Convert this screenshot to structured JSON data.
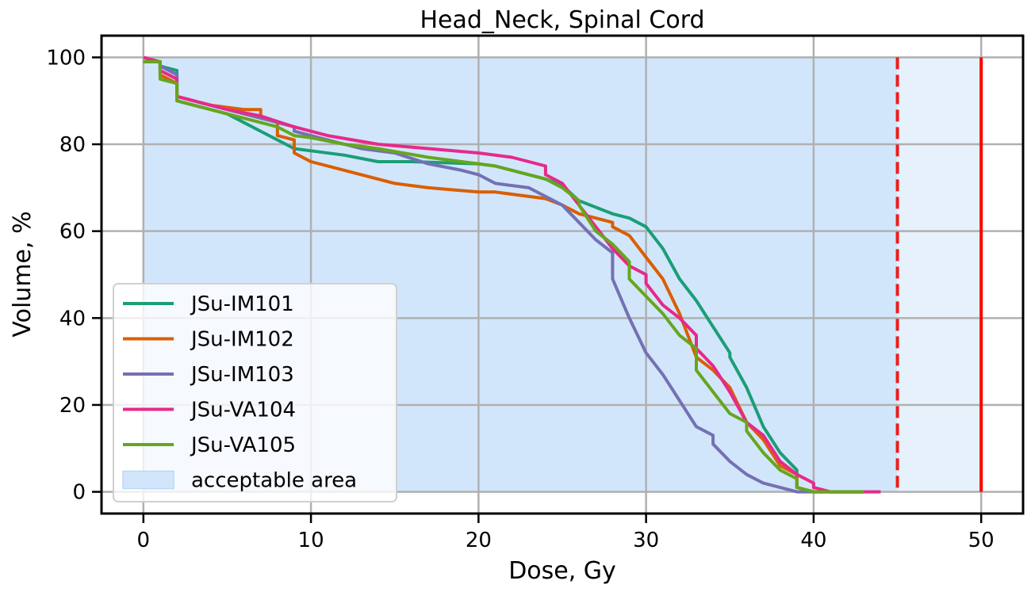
{
  "chart_data": {
    "type": "line",
    "title": "Head_Neck, Spinal Cord",
    "xlabel": "Dose, Gy",
    "ylabel": "Volume, %",
    "xlim": [
      -2.5,
      52.5
    ],
    "ylim": [
      -5,
      105
    ],
    "xticks": [
      0,
      10,
      20,
      30,
      40,
      50
    ],
    "yticks": [
      0,
      20,
      40,
      60,
      80,
      100
    ],
    "grid": true,
    "legend_position": "lower-left",
    "acceptable_area": {
      "label": "acceptable area",
      "x_from": 0,
      "x_to": 45,
      "y_from": 0,
      "y_to": 100,
      "color": "#d2e6fb"
    },
    "tolerance_band": {
      "x_from": 45,
      "x_to": 50,
      "color": "#e6f1fc"
    },
    "limit_lines": [
      {
        "x": 45,
        "style": "dashed",
        "color": "#ee1c1c"
      },
      {
        "x": 50,
        "style": "solid",
        "color": "#ff0000"
      }
    ],
    "series": [
      {
        "name": "JSu-IM101",
        "color": "#1b9e77",
        "points": [
          [
            0,
            99
          ],
          [
            1,
            99
          ],
          [
            1,
            98
          ],
          [
            2,
            97
          ],
          [
            2,
            90
          ],
          [
            5,
            87
          ],
          [
            7,
            83
          ],
          [
            9,
            79
          ],
          [
            10,
            78.5
          ],
          [
            12,
            77.5
          ],
          [
            14,
            76
          ],
          [
            16,
            76
          ],
          [
            20,
            75.5
          ],
          [
            21,
            75
          ],
          [
            23,
            73
          ],
          [
            24,
            72
          ],
          [
            25,
            70.5
          ],
          [
            26,
            67
          ],
          [
            28,
            64
          ],
          [
            29,
            63
          ],
          [
            30,
            61
          ],
          [
            31,
            56
          ],
          [
            32,
            49
          ],
          [
            33,
            44
          ],
          [
            34,
            38
          ],
          [
            35,
            32
          ],
          [
            35,
            31
          ],
          [
            36,
            24
          ],
          [
            37,
            15
          ],
          [
            38,
            9
          ],
          [
            39,
            5
          ],
          [
            39,
            1
          ],
          [
            40,
            0
          ],
          [
            43,
            0
          ]
        ]
      },
      {
        "name": "JSu-IM102",
        "color": "#d95f02",
        "points": [
          [
            0,
            99
          ],
          [
            1,
            99
          ],
          [
            1,
            96
          ],
          [
            2,
            94
          ],
          [
            2,
            91
          ],
          [
            3,
            90
          ],
          [
            4,
            89
          ],
          [
            5,
            88.5
          ],
          [
            6,
            88
          ],
          [
            7,
            88
          ],
          [
            7,
            86.5
          ],
          [
            8,
            85
          ],
          [
            8,
            82
          ],
          [
            9,
            81
          ],
          [
            9,
            78
          ],
          [
            10,
            76
          ],
          [
            12,
            74
          ],
          [
            15,
            71
          ],
          [
            17,
            70
          ],
          [
            20,
            69
          ],
          [
            21,
            69
          ],
          [
            24,
            67.5
          ],
          [
            25,
            66
          ],
          [
            26,
            64
          ],
          [
            27,
            63
          ],
          [
            28,
            62
          ],
          [
            28,
            61
          ],
          [
            29,
            59
          ],
          [
            30,
            54
          ],
          [
            31,
            49
          ],
          [
            32,
            41
          ],
          [
            33,
            31
          ],
          [
            34,
            28
          ],
          [
            35,
            24
          ],
          [
            36,
            16
          ],
          [
            37,
            12
          ],
          [
            38,
            6
          ],
          [
            39,
            4
          ],
          [
            39,
            1
          ],
          [
            40,
            0
          ],
          [
            43,
            0
          ]
        ]
      },
      {
        "name": "JSu-IM103",
        "color": "#7570b3",
        "points": [
          [
            0,
            99
          ],
          [
            1,
            99
          ],
          [
            1,
            98
          ],
          [
            2,
            96
          ],
          [
            2,
            91
          ],
          [
            4,
            89
          ],
          [
            6,
            87
          ],
          [
            8,
            85
          ],
          [
            9,
            84
          ],
          [
            9,
            83
          ],
          [
            10,
            82
          ],
          [
            12,
            80
          ],
          [
            13,
            79
          ],
          [
            15,
            78
          ],
          [
            17,
            75.5
          ],
          [
            19,
            74
          ],
          [
            20,
            73
          ],
          [
            21,
            71
          ],
          [
            23,
            70
          ],
          [
            25,
            66
          ],
          [
            26,
            62
          ],
          [
            27,
            58
          ],
          [
            28,
            55
          ],
          [
            28,
            49
          ],
          [
            29,
            40
          ],
          [
            30,
            32
          ],
          [
            31,
            27
          ],
          [
            32,
            21
          ],
          [
            33,
            15
          ],
          [
            34,
            13
          ],
          [
            34,
            11
          ],
          [
            35,
            7
          ],
          [
            36,
            4
          ],
          [
            37,
            2
          ],
          [
            38,
            1
          ],
          [
            39,
            0
          ],
          [
            43,
            0
          ]
        ]
      },
      {
        "name": "JSu-VA104",
        "color": "#e7298a",
        "points": [
          [
            0,
            100
          ],
          [
            1,
            99
          ],
          [
            1,
            97
          ],
          [
            2,
            95
          ],
          [
            2,
            91
          ],
          [
            3,
            90
          ],
          [
            5,
            88
          ],
          [
            7,
            86.5
          ],
          [
            9,
            84
          ],
          [
            11,
            82
          ],
          [
            14,
            80
          ],
          [
            17,
            79
          ],
          [
            20,
            78
          ],
          [
            22,
            77
          ],
          [
            24,
            75
          ],
          [
            24,
            73
          ],
          [
            25,
            71
          ],
          [
            26,
            66
          ],
          [
            27,
            61
          ],
          [
            28,
            56
          ],
          [
            29,
            52
          ],
          [
            30,
            50
          ],
          [
            30,
            48
          ],
          [
            31,
            43
          ],
          [
            32,
            40
          ],
          [
            33,
            36
          ],
          [
            33,
            33
          ],
          [
            34,
            29
          ],
          [
            35,
            23
          ],
          [
            36,
            16
          ],
          [
            37,
            13
          ],
          [
            38,
            7
          ],
          [
            39,
            4
          ],
          [
            40,
            2
          ],
          [
            40,
            1
          ],
          [
            41,
            0
          ],
          [
            44,
            0
          ]
        ]
      },
      {
        "name": "JSu-VA105",
        "color": "#66a61e",
        "points": [
          [
            0,
            99
          ],
          [
            1,
            99
          ],
          [
            1,
            95
          ],
          [
            2,
            94
          ],
          [
            2,
            90
          ],
          [
            5,
            87
          ],
          [
            8,
            84
          ],
          [
            9,
            82
          ],
          [
            10,
            81.5
          ],
          [
            12,
            80
          ],
          [
            14,
            79
          ],
          [
            17,
            77
          ],
          [
            19,
            76
          ],
          [
            21,
            75
          ],
          [
            23,
            73
          ],
          [
            24,
            72
          ],
          [
            25,
            70
          ],
          [
            26,
            67
          ],
          [
            26,
            66
          ],
          [
            27,
            60
          ],
          [
            28,
            57
          ],
          [
            29,
            53
          ],
          [
            29,
            49
          ],
          [
            30,
            45
          ],
          [
            31,
            41
          ],
          [
            32,
            36
          ],
          [
            33,
            33
          ],
          [
            33,
            28
          ],
          [
            34,
            23
          ],
          [
            35,
            18
          ],
          [
            36,
            16
          ],
          [
            36,
            14
          ],
          [
            37,
            9
          ],
          [
            38,
            5
          ],
          [
            39,
            3
          ],
          [
            39,
            1
          ],
          [
            40,
            0
          ],
          [
            43,
            0
          ]
        ]
      }
    ]
  }
}
